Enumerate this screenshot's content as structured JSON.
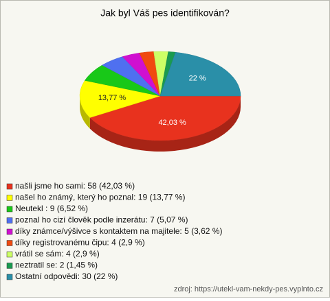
{
  "chart_data": {
    "type": "pie",
    "title": "Jak byl Váš pes identifikován?",
    "categories": [
      "našli jsme ho sami: 58 (42,03 %)",
      "našel ho známý, který ho poznal: 19 (13,77 %)",
      "Neutekl : 9 (6,52 %)",
      "poznal ho cizí člověk podle inzerátu: 7 (5,07 %)",
      "díky známce/výšivce s kontaktem na majitele: 5 (3,62 %)",
      "díky registrovanému čipu: 4 (2,9 %)",
      "vrátil se sám: 4 (2,9 %)",
      "neztratil se: 2 (1,45 %)",
      "Ostatní odpovědi: 30 (22 %)"
    ],
    "values": [
      42.03,
      13.77,
      6.52,
      5.07,
      3.62,
      2.9,
      2.9,
      1.45,
      22
    ],
    "value_labels": [
      "42,03 %",
      "13,77 %",
      null,
      null,
      null,
      null,
      null,
      null,
      "22 %"
    ],
    "colors": [
      "#e8321e",
      "#ffff00",
      "#18c818",
      "#4f70f0",
      "#d010d0",
      "#f04a10",
      "#ccff66",
      "#1a9a50",
      "#2a8fa8"
    ],
    "source": "zdroj: https://utekl-vam-nekdy-pes.vyplnto.cz"
  }
}
